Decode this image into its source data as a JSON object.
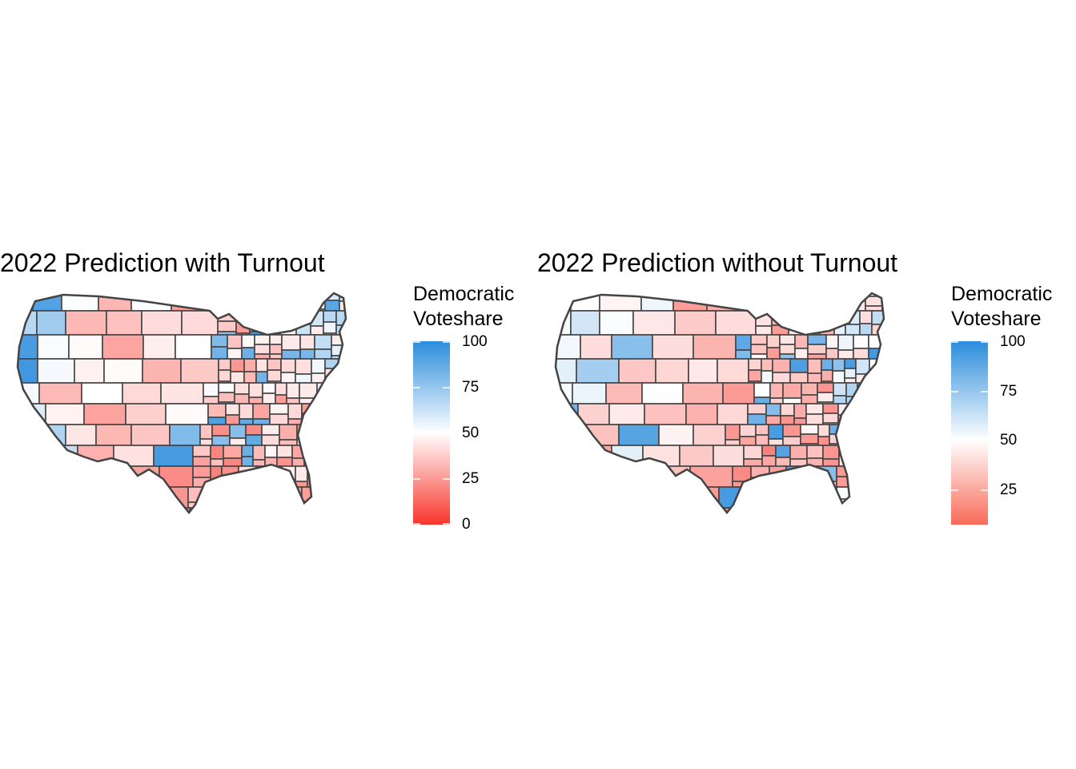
{
  "panels": [
    {
      "title": "2022 Prediction with Turnout",
      "legend": {
        "title_line1": "Democratic",
        "title_line2": "Voteshare",
        "ticks": [
          "100",
          "75",
          "50",
          "25",
          "0"
        ]
      }
    },
    {
      "title": "2022 Prediction without Turnout",
      "legend": {
        "title_line1": "Democratic",
        "title_line2": "Voteshare",
        "ticks": [
          "100",
          "75",
          "50",
          "25"
        ]
      }
    }
  ],
  "colors": {
    "low": "#f8342b",
    "mid": "#ffffff",
    "high": "#2b8cdc",
    "border": "#444444"
  },
  "chart_data": [
    {
      "type": "choropleth",
      "title": "2022 Prediction with Turnout",
      "region": "United States congressional districts",
      "fill_variable": "Democratic Voteshare",
      "scale": {
        "min": 0,
        "max": 100,
        "midpoint": 50,
        "low": "#f8342b",
        "mid": "#ffffff",
        "high": "#2b8cdc"
      },
      "legend_ticks": [
        0,
        25,
        50,
        75,
        100
      ]
    },
    {
      "type": "choropleth",
      "title": "2022 Prediction without Turnout",
      "region": "United States congressional districts",
      "fill_variable": "Democratic Voteshare",
      "scale": {
        "min": 8,
        "max": 100,
        "midpoint": 50,
        "low": "#f8342b",
        "mid": "#ffffff",
        "high": "#2b8cdc"
      },
      "legend_ticks": [
        25,
        50,
        75,
        100
      ]
    }
  ]
}
